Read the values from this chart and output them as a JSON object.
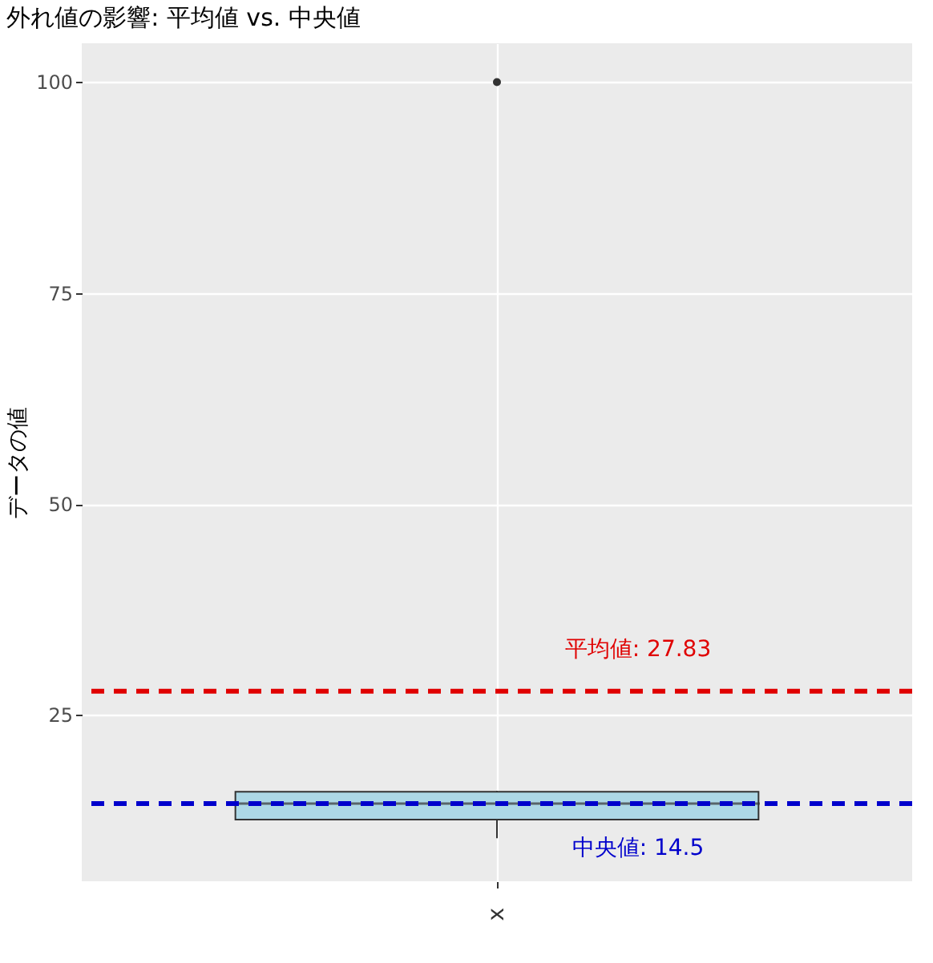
{
  "chart_data": {
    "type": "box",
    "title": "外れ値の影響: 平均値 vs. 中央値",
    "ylabel": "データの値",
    "categories": [
      "x"
    ],
    "boxes": [
      {
        "low": 10.4,
        "q1": 12.6,
        "median": 14.5,
        "q3": 15.9,
        "high": 16,
        "outliers": [
          100
        ]
      }
    ],
    "color": "#add8e6",
    "ylim": [
      5.3,
      104.6
    ],
    "yticks": [
      25,
      50,
      75,
      100
    ],
    "grid": true,
    "ref_lines": [
      {
        "axis": "y",
        "value": 27.83,
        "label": "平均値: 27.83",
        "color": "#e00000",
        "line_style": "dashed"
      },
      {
        "axis": "y",
        "value": 14.5,
        "label": "中央値: 14.5",
        "color": "#0000cc",
        "line_style": "dashed"
      }
    ]
  }
}
